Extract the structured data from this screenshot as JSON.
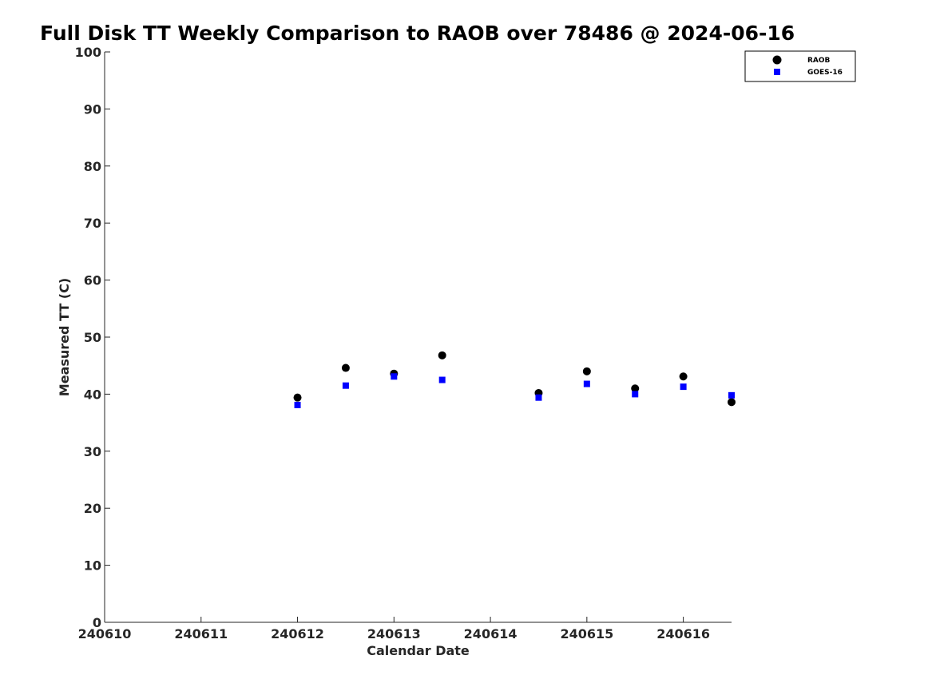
{
  "chart_data": {
    "type": "scatter",
    "title": "Full Disk TT Weekly Comparison to RAOB over 78486 @ 2024-06-16",
    "xlabel": "Calendar Date",
    "ylabel": "Measured TT (C)",
    "xlim": [
      240610,
      240616.5
    ],
    "ylim": [
      0,
      100
    ],
    "x_ticks": [
      240610,
      240611,
      240612,
      240613,
      240614,
      240615,
      240616
    ],
    "x_tick_labels": [
      "240610",
      "240611",
      "240612",
      "240613",
      "240614",
      "240615",
      "240616"
    ],
    "y_ticks": [
      0,
      10,
      20,
      30,
      40,
      50,
      60,
      70,
      80,
      90,
      100
    ],
    "y_tick_labels": [
      "0",
      "10",
      "20",
      "30",
      "40",
      "50",
      "60",
      "70",
      "80",
      "90",
      "100"
    ],
    "grid": false,
    "legend_position": "top-right",
    "series": [
      {
        "name": "RAOB",
        "marker": "circle",
        "color": "#000000",
        "x": [
          240612,
          240612.5,
          240613,
          240613.5,
          240614.5,
          240615,
          240615.5,
          240616,
          240616.5
        ],
        "y": [
          39.4,
          44.6,
          43.6,
          46.8,
          40.2,
          44.0,
          41.0,
          43.1,
          38.6
        ]
      },
      {
        "name": "GOES-16",
        "marker": "square",
        "color": "#0000ff",
        "x": [
          240612,
          240612.5,
          240613,
          240613.5,
          240614.5,
          240615,
          240615.5,
          240616,
          240616.5
        ],
        "y": [
          38.1,
          41.5,
          43.1,
          42.5,
          39.4,
          41.8,
          40.0,
          41.3,
          39.8
        ]
      }
    ]
  }
}
